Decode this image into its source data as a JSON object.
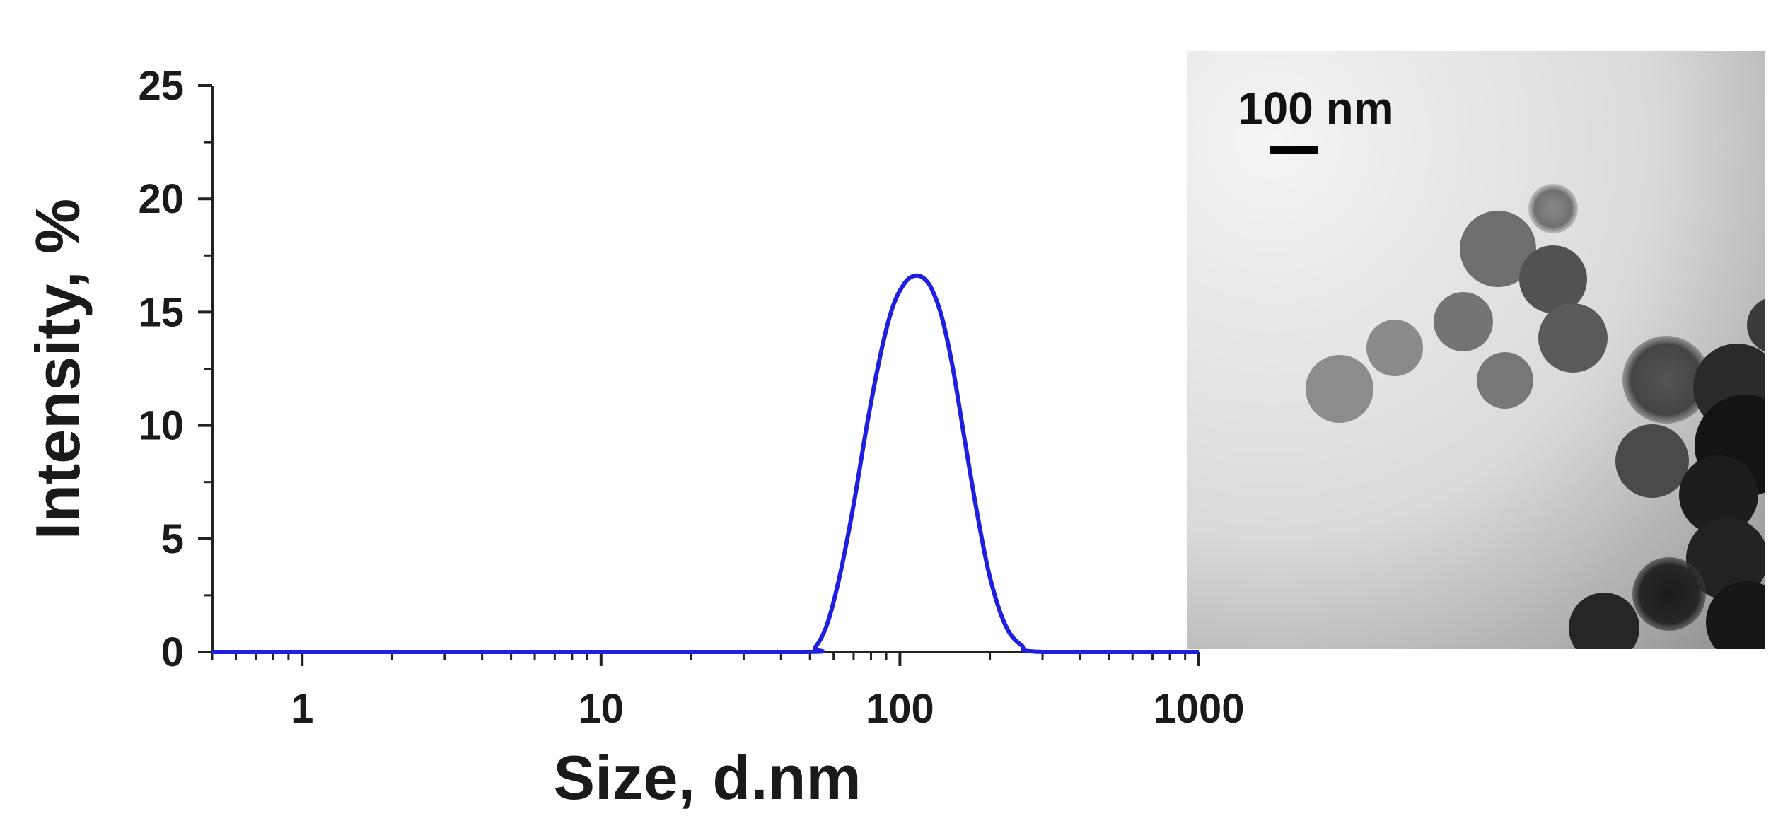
{
  "chart_data": {
    "type": "line",
    "xlabel": "Size, d.nm",
    "ylabel": "Intensity, %",
    "xscale": "log",
    "xlim": [
      0.5,
      1000
    ],
    "ylim": [
      0,
      25
    ],
    "xticks": [
      1,
      10,
      100,
      1000
    ],
    "xtick_labels": [
      "1",
      "10",
      "100",
      "1000"
    ],
    "yticks": [
      0,
      5,
      10,
      15,
      20,
      25
    ],
    "ytick_labels": [
      "0",
      "5",
      "10",
      "15",
      "20",
      "25"
    ],
    "grid": false,
    "series": [
      {
        "color": "#1f1fe0",
        "x": [
          0.5,
          10,
          48,
          52,
          57,
          63,
          70,
          78,
          87,
          95,
          104,
          112,
          120,
          128,
          138,
          150,
          165,
          182,
          200,
          225,
          255,
          300,
          1000
        ],
        "y": [
          0,
          0,
          0,
          0.2,
          1.2,
          3.4,
          6.5,
          10.2,
          13.4,
          15.3,
          16.3,
          16.6,
          16.5,
          16.0,
          14.8,
          12.6,
          9.3,
          6.0,
          3.3,
          1.2,
          0.3,
          0,
          0
        ]
      }
    ]
  },
  "inset": {
    "description_type": "micrograph",
    "scale_bar_label": "100 nm",
    "colors": {
      "background_light": "#f2f2f2",
      "particle": "#3a3a3a"
    }
  }
}
